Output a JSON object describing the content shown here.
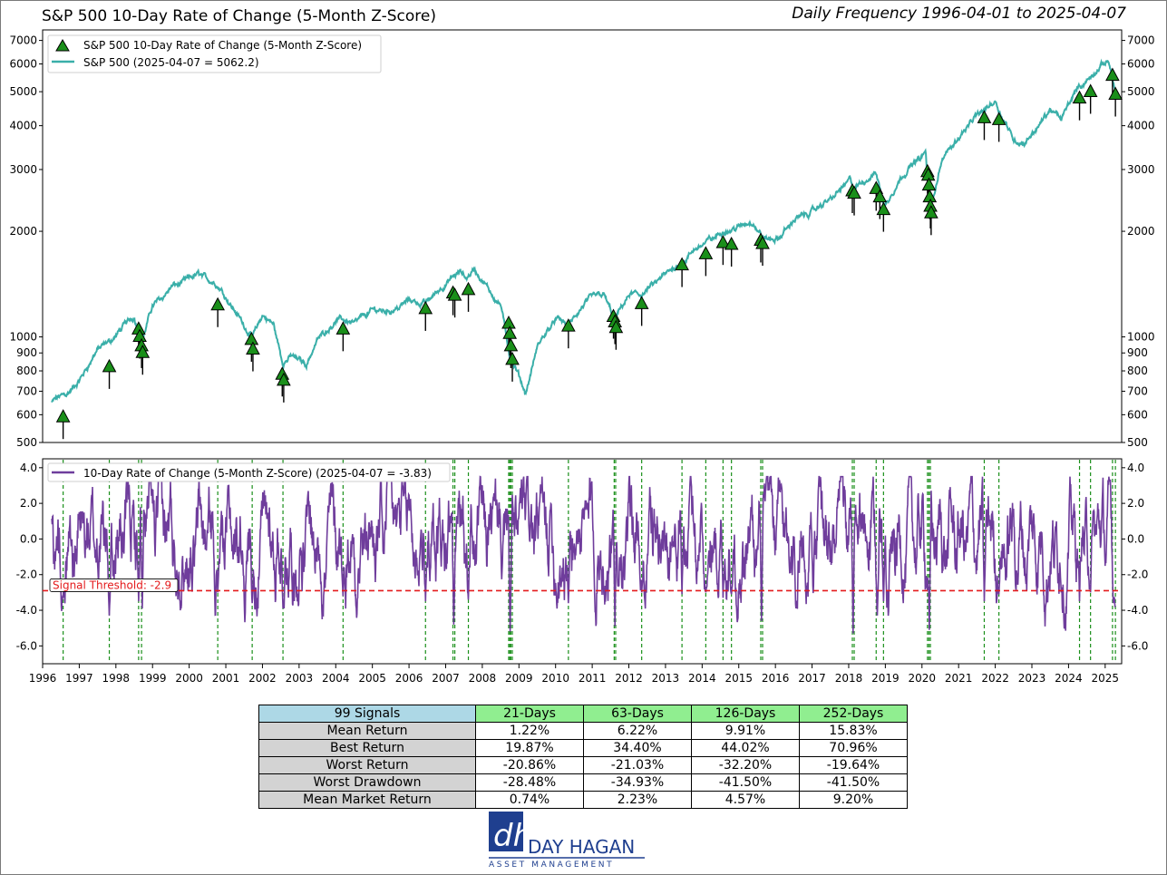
{
  "header": {
    "title": "S&P 500 10-Day Rate of Change (5-Month Z-Score)",
    "subtitle": "Daily Frequency 1996-04-01 to 2025-04-07"
  },
  "colors": {
    "price_line": "#3aafa9",
    "zscore_line": "#6f3d9c",
    "signal_marker": "#1a8f1a",
    "signal_line": "#1a8f1a",
    "threshold": "#e41a1c",
    "table_header_main": "#add8e6",
    "table_header": "#90ee90",
    "table_row_label": "#d3d3d3"
  },
  "chart_data": [
    {
      "type": "line",
      "scale": "log",
      "ylim": [
        500,
        7500
      ],
      "yticks": [
        500,
        600,
        700,
        800,
        900,
        1000,
        2000,
        3000,
        4000,
        5000,
        6000,
        7000
      ],
      "xlim": [
        1996.0,
        2025.45
      ],
      "legend_position": "top-left",
      "series": [
        {
          "name": "S&P 500 10-Day Rate of Change (5-Month Z-Score)",
          "kind": "signal-markers",
          "points": [
            [
              1996.56,
              590
            ],
            [
              1997.82,
              820
            ],
            [
              1998.62,
              1050
            ],
            [
              1998.65,
              1000
            ],
            [
              1998.7,
              940
            ],
            [
              1998.73,
              900
            ],
            [
              2000.78,
              1230
            ],
            [
              2001.7,
              980
            ],
            [
              2001.74,
              920
            ],
            [
              2002.54,
              780
            ],
            [
              2002.58,
              750
            ],
            [
              2004.2,
              1050
            ],
            [
              2006.45,
              1200
            ],
            [
              2007.2,
              1330
            ],
            [
              2007.25,
              1310
            ],
            [
              2007.62,
              1360
            ],
            [
              2008.72,
              1090
            ],
            [
              2008.75,
              1020
            ],
            [
              2008.78,
              940
            ],
            [
              2008.82,
              860
            ],
            [
              2010.35,
              1070
            ],
            [
              2011.58,
              1140
            ],
            [
              2011.62,
              1100
            ],
            [
              2011.65,
              1060
            ],
            [
              2012.35,
              1240
            ],
            [
              2013.45,
              1600
            ],
            [
              2014.1,
              1720
            ],
            [
              2014.57,
              1850
            ],
            [
              2014.8,
              1830
            ],
            [
              2015.6,
              1880
            ],
            [
              2015.65,
              1840
            ],
            [
              2018.1,
              2600
            ],
            [
              2018.15,
              2560
            ],
            [
              2018.75,
              2640
            ],
            [
              2018.85,
              2500
            ],
            [
              2018.95,
              2300
            ],
            [
              2020.15,
              2950
            ],
            [
              2020.17,
              2880
            ],
            [
              2020.19,
              2700
            ],
            [
              2020.21,
              2500
            ],
            [
              2020.23,
              2350
            ],
            [
              2020.25,
              2250
            ],
            [
              2021.7,
              4200
            ],
            [
              2022.1,
              4150
            ],
            [
              2024.3,
              4780
            ],
            [
              2024.6,
              4990
            ],
            [
              2025.2,
              5550
            ],
            [
              2025.28,
              4900
            ]
          ]
        },
        {
          "name": "S&P 500 (2025-04-07 = 5062.2)",
          "kind": "line",
          "points": [
            [
              1996.25,
              650
            ],
            [
              1996.55,
              680
            ],
            [
              1997.0,
              740
            ],
            [
              1997.5,
              920
            ],
            [
              1997.82,
              950
            ],
            [
              1998.5,
              1150
            ],
            [
              1998.7,
              970
            ],
            [
              1999.0,
              1230
            ],
            [
              1999.5,
              1400
            ],
            [
              2000.0,
              1450
            ],
            [
              2000.25,
              1500
            ],
            [
              2000.7,
              1440
            ],
            [
              2001.0,
              1320
            ],
            [
              2001.3,
              1180
            ],
            [
              2001.72,
              1000
            ],
            [
              2002.0,
              1150
            ],
            [
              2002.3,
              1080
            ],
            [
              2002.55,
              840
            ],
            [
              2002.8,
              880
            ],
            [
              2003.2,
              840
            ],
            [
              2003.5,
              990
            ],
            [
              2004.0,
              1130
            ],
            [
              2004.5,
              1110
            ],
            [
              2005.0,
              1190
            ],
            [
              2005.5,
              1200
            ],
            [
              2006.0,
              1280
            ],
            [
              2006.45,
              1250
            ],
            [
              2006.9,
              1400
            ],
            [
              2007.4,
              1520
            ],
            [
              2007.55,
              1450
            ],
            [
              2007.78,
              1560
            ],
            [
              2008.2,
              1330
            ],
            [
              2008.5,
              1250
            ],
            [
              2008.75,
              880
            ],
            [
              2009.18,
              680
            ],
            [
              2009.5,
              920
            ],
            [
              2010.0,
              1130
            ],
            [
              2010.35,
              1080
            ],
            [
              2010.9,
              1250
            ],
            [
              2011.3,
              1340
            ],
            [
              2011.62,
              1120
            ],
            [
              2012.0,
              1300
            ],
            [
              2012.35,
              1320
            ],
            [
              2013.0,
              1480
            ],
            [
              2013.5,
              1650
            ],
            [
              2014.0,
              1830
            ],
            [
              2014.5,
              1970
            ],
            [
              2015.0,
              2060
            ],
            [
              2015.4,
              2120
            ],
            [
              2015.65,
              1900
            ],
            [
              2016.1,
              1880
            ],
            [
              2016.5,
              2150
            ],
            [
              2017.0,
              2270
            ],
            [
              2017.5,
              2450
            ],
            [
              2018.05,
              2830
            ],
            [
              2018.15,
              2620
            ],
            [
              2018.75,
              2920
            ],
            [
              2018.98,
              2350
            ],
            [
              2019.5,
              2950
            ],
            [
              2020.1,
              3380
            ],
            [
              2020.22,
              2240
            ],
            [
              2020.5,
              3100
            ],
            [
              2021.0,
              3750
            ],
            [
              2021.5,
              4300
            ],
            [
              2022.0,
              4780
            ],
            [
              2022.5,
              3700
            ],
            [
              2022.8,
              3580
            ],
            [
              2023.5,
              4400
            ],
            [
              2023.8,
              4150
            ],
            [
              2024.25,
              5200
            ],
            [
              2024.6,
              5450
            ],
            [
              2025.1,
              6100
            ],
            [
              2025.27,
              5062
            ]
          ]
        }
      ]
    },
    {
      "type": "line",
      "ylim": [
        -7.0,
        4.5
      ],
      "yticks": [
        -6.0,
        -4.0,
        -2.0,
        0.0,
        2.0,
        4.0
      ],
      "legend_position": "top-left",
      "series": [
        {
          "name": "10-Day Rate of Change (5-Month Z-Score) (2025-04-07 = -3.83)",
          "kind": "line",
          "amplitude": 1.15,
          "extremes": [
            [
              1996.56,
              -3.3
            ],
            [
              1997.82,
              -4.3
            ],
            [
              1998.62,
              -3.5
            ],
            [
              1998.72,
              -3.9
            ],
            [
              2000.78,
              -3.0
            ],
            [
              2001.72,
              -3.6
            ],
            [
              2002.56,
              -3.9
            ],
            [
              2004.2,
              -3.2
            ],
            [
              2006.45,
              -3.5
            ],
            [
              2007.22,
              -4.8
            ],
            [
              2007.62,
              -3.4
            ],
            [
              2008.76,
              -5.2
            ],
            [
              2010.35,
              -3.6
            ],
            [
              2011.62,
              -4.9
            ],
            [
              2012.35,
              -3.0
            ],
            [
              2013.45,
              -3.1
            ],
            [
              2014.1,
              -3.0
            ],
            [
              2014.57,
              -3.3
            ],
            [
              2014.8,
              -3.1
            ],
            [
              2015.62,
              -4.6
            ],
            [
              2018.12,
              -5.3
            ],
            [
              2018.78,
              -4.3
            ],
            [
              2018.95,
              -3.5
            ],
            [
              2020.2,
              -5.1
            ],
            [
              2021.7,
              -3.5
            ],
            [
              2022.1,
              -3.1
            ],
            [
              2024.3,
              -3.5
            ],
            [
              2024.6,
              -3.0
            ],
            [
              2025.22,
              -3.6
            ],
            [
              2025.27,
              -3.83
            ]
          ]
        }
      ],
      "threshold": -2.9,
      "threshold_label": "Signal Threshold: -2.9",
      "signal_dates": [
        1996.56,
        1997.82,
        1998.62,
        1998.7,
        2000.78,
        2001.72,
        2002.56,
        2004.2,
        2006.45,
        2007.2,
        2007.25,
        2007.62,
        2008.72,
        2008.75,
        2008.78,
        2008.82,
        2010.35,
        2011.6,
        2011.64,
        2012.35,
        2013.45,
        2014.1,
        2014.57,
        2014.8,
        2015.6,
        2015.65,
        2018.1,
        2018.15,
        2018.75,
        2018.95,
        2020.15,
        2020.19,
        2020.23,
        2021.7,
        2022.1,
        2024.3,
        2024.6,
        2025.2,
        2025.28
      ],
      "xticks": [
        "1996",
        "1997",
        "1998",
        "1999",
        "2000",
        "2001",
        "2002",
        "2003",
        "2004",
        "2005",
        "2006",
        "2007",
        "2008",
        "2009",
        "2010",
        "2011",
        "2012",
        "2013",
        "2014",
        "2015",
        "2016",
        "2017",
        "2018",
        "2019",
        "2020",
        "2021",
        "2022",
        "2023",
        "2024",
        "2025"
      ]
    }
  ],
  "table": {
    "corner": "99 Signals",
    "columns": [
      "21-Days",
      "63-Days",
      "126-Days",
      "252-Days"
    ],
    "rows": [
      {
        "label": "Mean Return",
        "values": [
          "1.22%",
          "6.22%",
          "9.91%",
          "15.83%"
        ]
      },
      {
        "label": "Best Return",
        "values": [
          "19.87%",
          "34.40%",
          "44.02%",
          "70.96%"
        ]
      },
      {
        "label": "Worst Return",
        "values": [
          "-20.86%",
          "-21.03%",
          "-32.20%",
          "-19.64%"
        ]
      },
      {
        "label": "Worst Drawdown",
        "values": [
          "-28.48%",
          "-34.93%",
          "-41.50%",
          "-41.50%"
        ]
      },
      {
        "label": "Mean Market Return",
        "values": [
          "0.74%",
          "2.23%",
          "4.57%",
          "9.20%"
        ]
      }
    ]
  },
  "logo": {
    "mark": "dh",
    "name": "DAY HAGAN",
    "tagline": "ASSET MANAGEMENT",
    "color": "#1f3f8f"
  }
}
